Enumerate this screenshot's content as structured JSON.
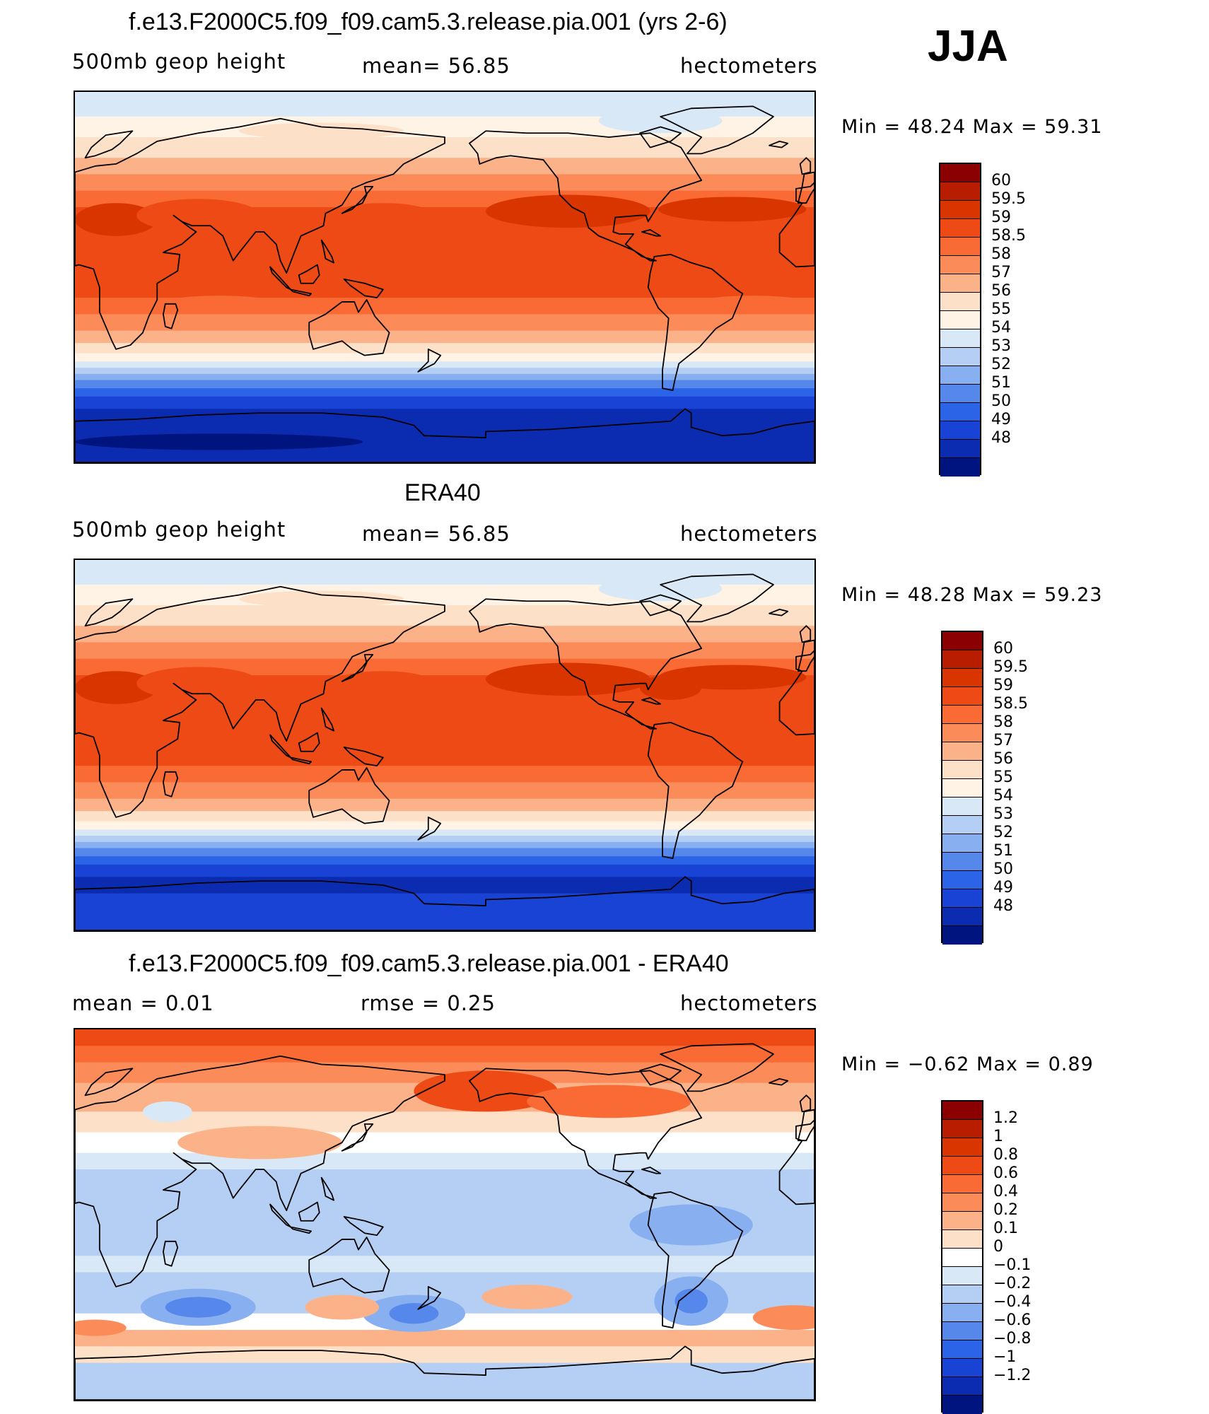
{
  "season": "JJA",
  "panels": [
    {
      "title": "f.e13.F2000C5.f09_f09.cam5.3.release.pia.001 (yrs 2-6)",
      "left": "500mb geop height",
      "middle": "mean=   56.85",
      "right": "hectometers",
      "minmax": "Min =    48.24  Max =    59.31",
      "levels": [
        "60",
        "59.5",
        "59",
        "58.5",
        "58",
        "57",
        "56",
        "55",
        "54",
        "53",
        "52",
        "51",
        "50",
        "49",
        "48"
      ],
      "colors": [
        "#8b0000",
        "#b81d00",
        "#d93500",
        "#ee4a15",
        "#f96a35",
        "#fb8c5a",
        "#fcb288",
        "#fde0c8",
        "#fff3e6",
        "#d9e8f7",
        "#b4cff3",
        "#88aff0",
        "#5588ea",
        "#2b64e6",
        "#1843d4",
        "#0b2cb0",
        "#001480"
      ],
      "kind": "abs"
    },
    {
      "title": "ERA40",
      "left": "500mb geop height",
      "middle": "mean=   56.85",
      "right": "hectometers",
      "minmax": "Min =    48.28  Max =    59.23",
      "levels": [
        "60",
        "59.5",
        "59",
        "58.5",
        "58",
        "57",
        "56",
        "55",
        "54",
        "53",
        "52",
        "51",
        "50",
        "49",
        "48"
      ],
      "colors": [
        "#8b0000",
        "#b81d00",
        "#d93500",
        "#ee4a15",
        "#f96a35",
        "#fb8c5a",
        "#fcb288",
        "#fde0c8",
        "#fff3e6",
        "#d9e8f7",
        "#b4cff3",
        "#88aff0",
        "#5588ea",
        "#2b64e6",
        "#1843d4",
        "#0b2cb0",
        "#001480"
      ],
      "kind": "abs"
    },
    {
      "title": "f.e13.F2000C5.f09_f09.cam5.3.release.pia.001 - ERA40",
      "left": "mean =     0.01",
      "middle": "rmse =     0.25",
      "right": "hectometers",
      "minmax": "Min =   −0.62  Max =     0.89",
      "levels": [
        "1.2",
        "1",
        "0.8",
        "0.6",
        "0.4",
        "0.2",
        "0.1",
        "0",
        "−0.1",
        "−0.2",
        "−0.4",
        "−0.6",
        "−0.8",
        "−1",
        "−1.2"
      ],
      "colors": [
        "#8b0000",
        "#b81d00",
        "#d93500",
        "#ee4a15",
        "#f96a35",
        "#fb8c5a",
        "#fcb288",
        "#fde0c8",
        "#ffffff",
        "#d9e8f7",
        "#b4cff3",
        "#88aff0",
        "#5588ea",
        "#2b64e6",
        "#1843d4",
        "#0b2cb0",
        "#001480"
      ],
      "kind": "diff"
    }
  ]
}
